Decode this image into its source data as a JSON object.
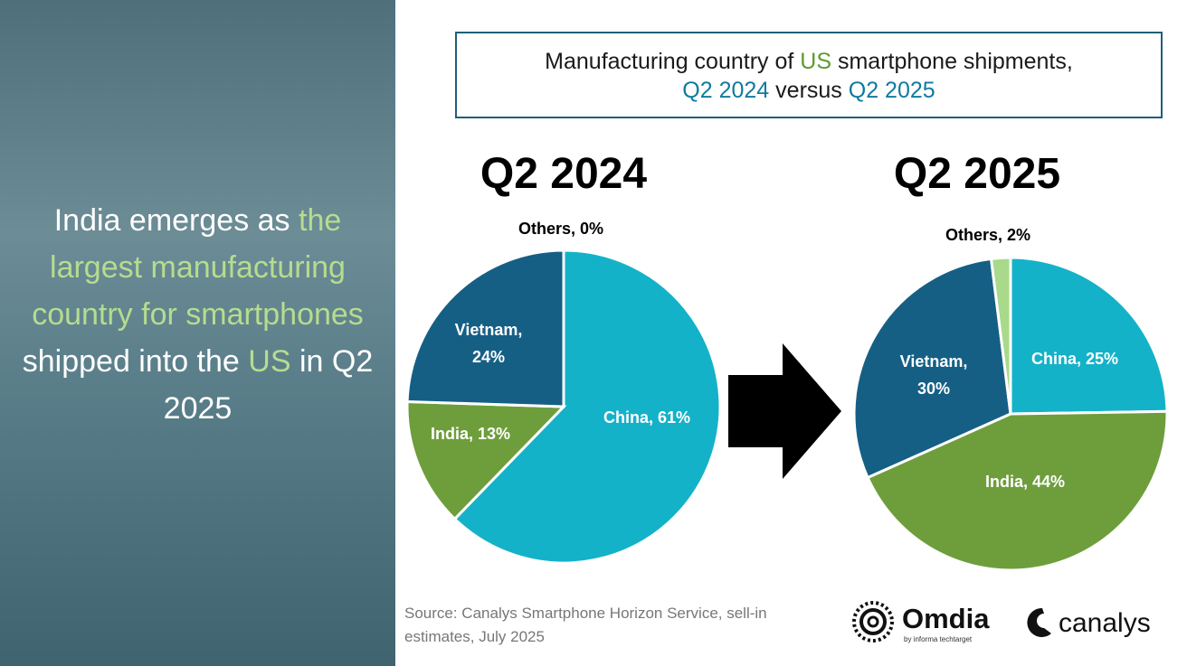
{
  "headline": [
    {
      "text": "India emerges as",
      "highlight": false
    },
    {
      "text": "the largest manufacturing country for smartphones",
      "highlight": true
    },
    {
      "text": "shipped into the",
      "highlight": false
    },
    {
      "text": "US",
      "highlight": true
    },
    {
      "text": "in Q2 2025",
      "highlight": false
    }
  ],
  "title": [
    [
      {
        "text": "Manufacturing country of",
        "color": "#1a1a1a"
      },
      {
        "text": "US",
        "color": "#5e9a2e"
      },
      {
        "text": "smartphone shipments,",
        "color": "#1a1a1a"
      }
    ],
    [
      {
        "text": "Q2 2024",
        "color": "#0f7aa0"
      },
      {
        "text": "versus",
        "color": "#1a1a1a"
      },
      {
        "text": "Q2 2025",
        "color": "#0f7aa0"
      }
    ]
  ],
  "chart_data": [
    {
      "type": "pie",
      "title": "Q2 2024",
      "values": [
        61,
        13,
        24,
        0
      ],
      "value_labels": [
        "China, 61%",
        "India, 13%",
        "Vietnam, 24%",
        "Others, 0%"
      ],
      "colors": [
        "#14b2c8",
        "#6e9e3c",
        "#155f85",
        "#a9d98a"
      ]
    },
    {
      "type": "pie",
      "title": "Q2 2025",
      "values": [
        25,
        44,
        30,
        2
      ],
      "value_labels": [
        "China, 25%",
        "India, 44%",
        "Vietnam, 30%",
        "Others, 2%"
      ],
      "colors": [
        "#14b2c8",
        "#6e9e3c",
        "#155f85",
        "#a9d98a"
      ]
    }
  ],
  "source": "Source: Canalys Smartphone Horizon Service, sell-in estimates, July 2025",
  "logos": {
    "omdia": "Omdia",
    "omdia_sub": "by informa techtarget",
    "canalys": "canalys"
  }
}
